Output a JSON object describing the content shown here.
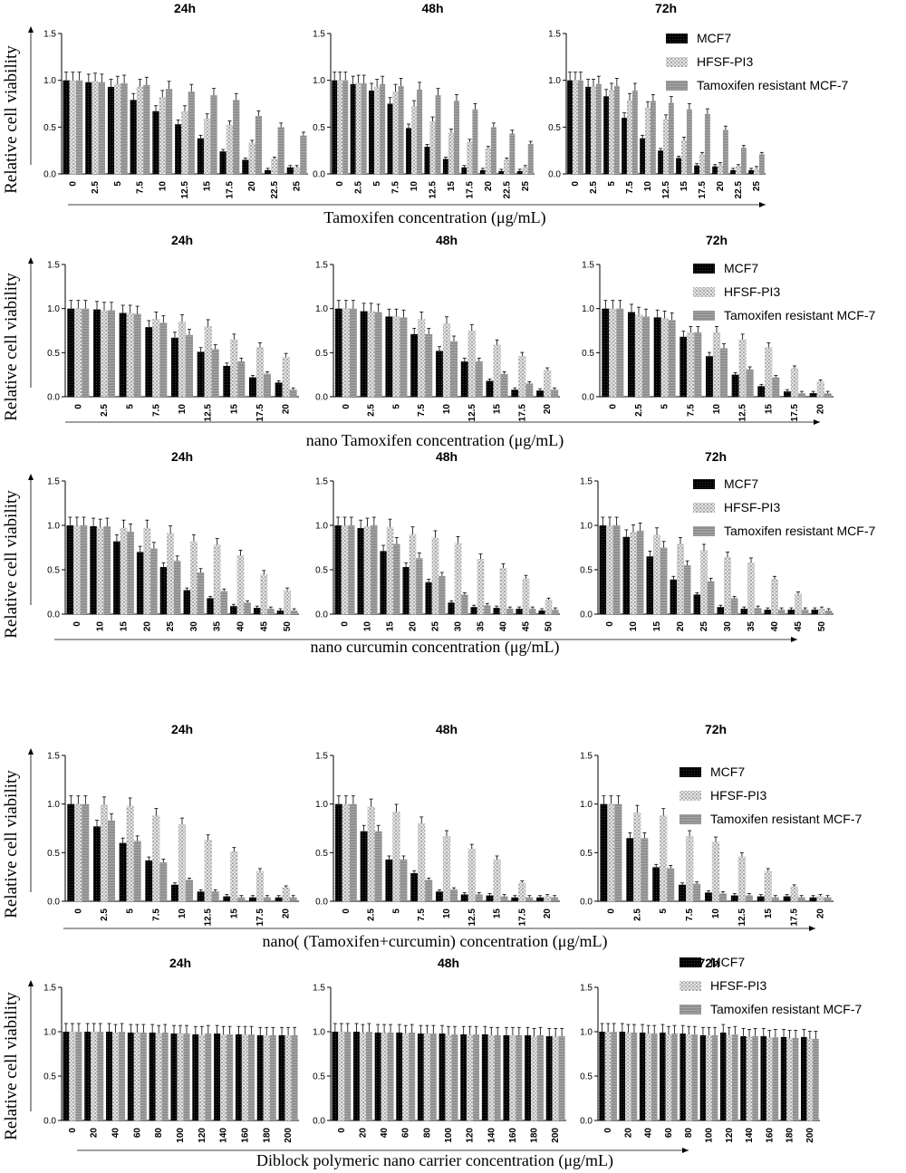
{
  "figure": {
    "legend_labels": [
      "MCF7",
      "HFSF-PI3",
      "Tamoxifen resistant MCF-7"
    ],
    "ylabel": "Relative cell viability",
    "y_ticks": [
      "0.0",
      "0.5",
      "1.0",
      "1.5"
    ],
    "colors": {
      "MCF7": "#000000",
      "HFSF-PI3": "#d6d6d6",
      "Tamoxifen resistant MCF-7": "#8f8f8f"
    }
  },
  "chart_data": [
    {
      "row": 1,
      "type": "bar",
      "xlabel": "Tamoxifen concentration (μg/mL)",
      "ylabel": "Relative cell viability",
      "ylim": [
        0,
        1.5
      ],
      "categories": [
        "0",
        "2.5",
        "5",
        "7.5",
        "10",
        "12.5",
        "15",
        "17.5",
        "20",
        "22.5",
        "25"
      ],
      "panels": [
        {
          "title": "24h",
          "series": [
            {
              "name": "MCF7",
              "values": [
                1.0,
                0.98,
                0.93,
                0.79,
                0.67,
                0.53,
                0.38,
                0.24,
                0.15,
                0.04,
                0.07
              ]
            },
            {
              "name": "HFSF-PI3",
              "values": [
                1.0,
                0.99,
                0.96,
                0.93,
                0.82,
                0.67,
                0.59,
                0.52,
                0.33,
                0.16,
                0.07
              ]
            },
            {
              "name": "Tamoxifen resistant MCF-7",
              "values": [
                1.0,
                0.98,
                0.97,
                0.95,
                0.91,
                0.88,
                0.84,
                0.79,
                0.62,
                0.5,
                0.41
              ]
            }
          ]
        },
        {
          "title": "48h",
          "series": [
            {
              "name": "MCF7",
              "values": [
                1.0,
                0.96,
                0.89,
                0.75,
                0.49,
                0.29,
                0.16,
                0.07,
                0.04,
                0.03,
                0.03
              ]
            },
            {
              "name": "HFSF-PI3",
              "values": [
                1.0,
                0.97,
                0.93,
                0.88,
                0.72,
                0.56,
                0.44,
                0.34,
                0.27,
                0.15,
                0.07
              ]
            },
            {
              "name": "Tamoxifen resistant MCF-7",
              "values": [
                1.0,
                0.97,
                0.96,
                0.94,
                0.9,
                0.84,
                0.78,
                0.69,
                0.5,
                0.43,
                0.32
              ]
            }
          ]
        },
        {
          "title": "72h",
          "series": [
            {
              "name": "MCF7",
              "values": [
                1.0,
                0.93,
                0.83,
                0.6,
                0.38,
                0.25,
                0.17,
                0.09,
                0.08,
                0.04,
                0.04
              ]
            },
            {
              "name": "HFSF-PI3",
              "values": [
                1.0,
                0.93,
                0.89,
                0.79,
                0.71,
                0.58,
                0.36,
                0.21,
                0.1,
                0.08,
                0.06
              ]
            },
            {
              "name": "Tamoxifen resistant MCF-7",
              "values": [
                1.0,
                0.96,
                0.94,
                0.89,
                0.78,
                0.76,
                0.69,
                0.64,
                0.47,
                0.28,
                0.21
              ]
            }
          ]
        }
      ]
    },
    {
      "row": 2,
      "type": "bar",
      "xlabel": "nano Tamoxifen concentration (μg/mL)",
      "ylabel": "Relative cell viability",
      "ylim": [
        0,
        1.5
      ],
      "categories": [
        "0",
        "2.5",
        "5",
        "7.5",
        "10",
        "12.5",
        "15",
        "17.5",
        "20"
      ],
      "panels": [
        {
          "title": "24h",
          "series": [
            {
              "name": "MCF7",
              "values": [
                1.0,
                0.99,
                0.95,
                0.79,
                0.67,
                0.51,
                0.35,
                0.22,
                0.16
              ]
            },
            {
              "name": "HFSF-PI3",
              "values": [
                1.0,
                0.98,
                0.95,
                0.88,
                0.85,
                0.8,
                0.65,
                0.56,
                0.45
              ]
            },
            {
              "name": "Tamoxifen resistant MCF-7",
              "values": [
                1.0,
                0.98,
                0.94,
                0.84,
                0.7,
                0.54,
                0.4,
                0.26,
                0.08
              ]
            }
          ]
        },
        {
          "title": "48h",
          "series": [
            {
              "name": "MCF7",
              "values": [
                1.0,
                0.97,
                0.91,
                0.71,
                0.52,
                0.4,
                0.18,
                0.08,
                0.07
              ]
            },
            {
              "name": "HFSF-PI3",
              "values": [
                1.0,
                0.97,
                0.91,
                0.88,
                0.83,
                0.75,
                0.59,
                0.46,
                0.3
              ]
            },
            {
              "name": "Tamoxifen resistant MCF-7",
              "values": [
                1.0,
                0.96,
                0.9,
                0.71,
                0.63,
                0.4,
                0.26,
                0.15,
                0.08
              ]
            }
          ]
        },
        {
          "title": "72h",
          "series": [
            {
              "name": "MCF7",
              "values": [
                1.0,
                0.96,
                0.9,
                0.68,
                0.46,
                0.25,
                0.12,
                0.06,
                0.04
              ]
            },
            {
              "name": "HFSF-PI3",
              "values": [
                1.0,
                0.93,
                0.89,
                0.73,
                0.73,
                0.65,
                0.56,
                0.32,
                0.17
              ]
            },
            {
              "name": "Tamoxifen resistant MCF-7",
              "values": [
                1.0,
                0.91,
                0.87,
                0.73,
                0.55,
                0.31,
                0.22,
                0.04,
                0.04
              ]
            }
          ]
        }
      ]
    },
    {
      "row": 3,
      "type": "bar",
      "xlabel": "nano curcumin concentration (μg/mL)",
      "ylabel": "Relative cell viability",
      "ylim": [
        0,
        1.5
      ],
      "categories": [
        "0",
        "10",
        "15",
        "20",
        "25",
        "30",
        "35",
        "40",
        "45",
        "50"
      ],
      "panels": [
        {
          "title": "24h",
          "series": [
            {
              "name": "MCF7",
              "values": [
                1.0,
                0.99,
                0.82,
                0.7,
                0.53,
                0.27,
                0.18,
                0.09,
                0.07,
                0.04
              ]
            },
            {
              "name": "HFSF-PI3",
              "values": [
                1.0,
                0.98,
                0.97,
                0.97,
                0.91,
                0.82,
                0.78,
                0.66,
                0.45,
                0.27
              ]
            },
            {
              "name": "Tamoxifen resistant MCF-7",
              "values": [
                1.0,
                0.99,
                0.93,
                0.74,
                0.6,
                0.47,
                0.26,
                0.13,
                0.06,
                0.04
              ]
            }
          ]
        },
        {
          "title": "48h",
          "series": [
            {
              "name": "MCF7",
              "values": [
                1.0,
                0.97,
                0.71,
                0.53,
                0.36,
                0.13,
                0.08,
                0.07,
                0.06,
                0.04
              ]
            },
            {
              "name": "HFSF-PI3",
              "values": [
                1.0,
                0.99,
                0.98,
                0.9,
                0.86,
                0.8,
                0.62,
                0.52,
                0.4,
                0.16
              ]
            },
            {
              "name": "Tamoxifen resistant MCF-7",
              "values": [
                1.0,
                1.0,
                0.79,
                0.63,
                0.43,
                0.22,
                0.1,
                0.06,
                0.06,
                0.05
              ]
            }
          ]
        },
        {
          "title": "72h",
          "series": [
            {
              "name": "MCF7",
              "values": [
                1.0,
                0.87,
                0.65,
                0.39,
                0.22,
                0.08,
                0.06,
                0.05,
                0.05,
                0.05
              ]
            },
            {
              "name": "HFSF-PI3",
              "values": [
                1.0,
                0.92,
                0.89,
                0.79,
                0.72,
                0.64,
                0.58,
                0.39,
                0.23,
                0.06
              ]
            },
            {
              "name": "Tamoxifen resistant MCF-7",
              "values": [
                1.0,
                0.94,
                0.75,
                0.55,
                0.37,
                0.18,
                0.07,
                0.05,
                0.05,
                0.04
              ]
            }
          ]
        }
      ]
    },
    {
      "row": 4,
      "type": "bar",
      "xlabel": "nano( (Tamoxifen+curcumin) concentration (μg/mL)",
      "ylabel": "Relative cell viability",
      "ylim": [
        0,
        1.5
      ],
      "categories": [
        "0",
        "2.5",
        "5",
        "7.5",
        "10",
        "12.5",
        "15",
        "17.5",
        "20"
      ],
      "panels": [
        {
          "title": "24h",
          "series": [
            {
              "name": "MCF7",
              "values": [
                1.0,
                0.77,
                0.6,
                0.42,
                0.17,
                0.1,
                0.05,
                0.04,
                0.04
              ]
            },
            {
              "name": "HFSF-PI3",
              "values": [
                1.0,
                0.99,
                0.98,
                0.88,
                0.79,
                0.63,
                0.51,
                0.31,
                0.14
              ]
            },
            {
              "name": "Tamoxifen resistant MCF-7",
              "values": [
                1.0,
                0.83,
                0.62,
                0.4,
                0.22,
                0.1,
                0.04,
                0.04,
                0.04
              ]
            }
          ]
        },
        {
          "title": "48h",
          "series": [
            {
              "name": "MCF7",
              "values": [
                1.0,
                0.72,
                0.43,
                0.29,
                0.1,
                0.07,
                0.06,
                0.04,
                0.04
              ]
            },
            {
              "name": "HFSF-PI3",
              "values": [
                1.0,
                0.97,
                0.92,
                0.8,
                0.67,
                0.54,
                0.43,
                0.19,
                0.05
              ]
            },
            {
              "name": "Tamoxifen resistant MCF-7",
              "values": [
                1.0,
                0.72,
                0.43,
                0.22,
                0.12,
                0.07,
                0.05,
                0.04,
                0.04
              ]
            }
          ]
        },
        {
          "title": "72h",
          "series": [
            {
              "name": "MCF7",
              "values": [
                1.0,
                0.65,
                0.35,
                0.17,
                0.09,
                0.06,
                0.05,
                0.05,
                0.04
              ]
            },
            {
              "name": "HFSF-PI3",
              "values": [
                1.0,
                0.91,
                0.88,
                0.67,
                0.61,
                0.46,
                0.31,
                0.15,
                0.05
              ]
            },
            {
              "name": "Tamoxifen resistant MCF-7",
              "values": [
                1.0,
                0.65,
                0.34,
                0.18,
                0.08,
                0.06,
                0.04,
                0.04,
                0.04
              ]
            }
          ]
        }
      ]
    },
    {
      "row": 5,
      "type": "bar",
      "xlabel": "Diblock polymeric nano carrier concentration (μg/mL)",
      "ylabel": "Relative cell viability",
      "ylim": [
        0,
        1.5
      ],
      "categories": [
        "0",
        "20",
        "40",
        "60",
        "80",
        "100",
        "120",
        "140",
        "160",
        "180",
        "200"
      ],
      "panels": [
        {
          "title": "24h",
          "series": [
            {
              "name": "MCF7",
              "values": [
                1.0,
                1.0,
                1.0,
                0.99,
                0.99,
                0.98,
                0.97,
                0.98,
                0.97,
                0.96,
                0.96
              ]
            },
            {
              "name": "HFSF-PI3",
              "values": [
                1.0,
                1.0,
                0.99,
                0.99,
                0.98,
                0.98,
                0.97,
                0.97,
                0.97,
                0.96,
                0.96
              ]
            },
            {
              "name": "Tamoxifen resistant MCF-7",
              "values": [
                1.0,
                1.0,
                1.0,
                0.99,
                0.99,
                0.98,
                0.98,
                0.97,
                0.97,
                0.96,
                0.96
              ]
            }
          ]
        },
        {
          "title": "48h",
          "series": [
            {
              "name": "MCF7",
              "values": [
                1.0,
                1.0,
                0.99,
                0.99,
                0.98,
                0.98,
                0.97,
                0.97,
                0.96,
                0.96,
                0.95
              ]
            },
            {
              "name": "HFSF-PI3",
              "values": [
                1.0,
                0.99,
                0.99,
                0.98,
                0.98,
                0.97,
                0.97,
                0.96,
                0.96,
                0.95,
                0.95
              ]
            },
            {
              "name": "Tamoxifen resistant MCF-7",
              "values": [
                1.0,
                1.0,
                0.99,
                0.99,
                0.98,
                0.97,
                0.97,
                0.96,
                0.96,
                0.96,
                0.95
              ]
            }
          ]
        },
        {
          "title": "72h",
          "series": [
            {
              "name": "MCF7",
              "values": [
                1.0,
                1.0,
                0.99,
                0.99,
                0.98,
                0.96,
                0.99,
                0.95,
                0.95,
                0.94,
                0.94
              ]
            },
            {
              "name": "HFSF-PI3",
              "values": [
                1.0,
                0.99,
                0.98,
                0.97,
                0.97,
                0.96,
                0.96,
                0.94,
                0.93,
                0.93,
                0.92
              ]
            },
            {
              "name": "Tamoxifen resistant MCF-7",
              "values": [
                1.0,
                0.99,
                0.98,
                0.98,
                0.97,
                0.96,
                0.97,
                0.95,
                0.94,
                0.93,
                0.92
              ]
            }
          ]
        }
      ]
    }
  ]
}
